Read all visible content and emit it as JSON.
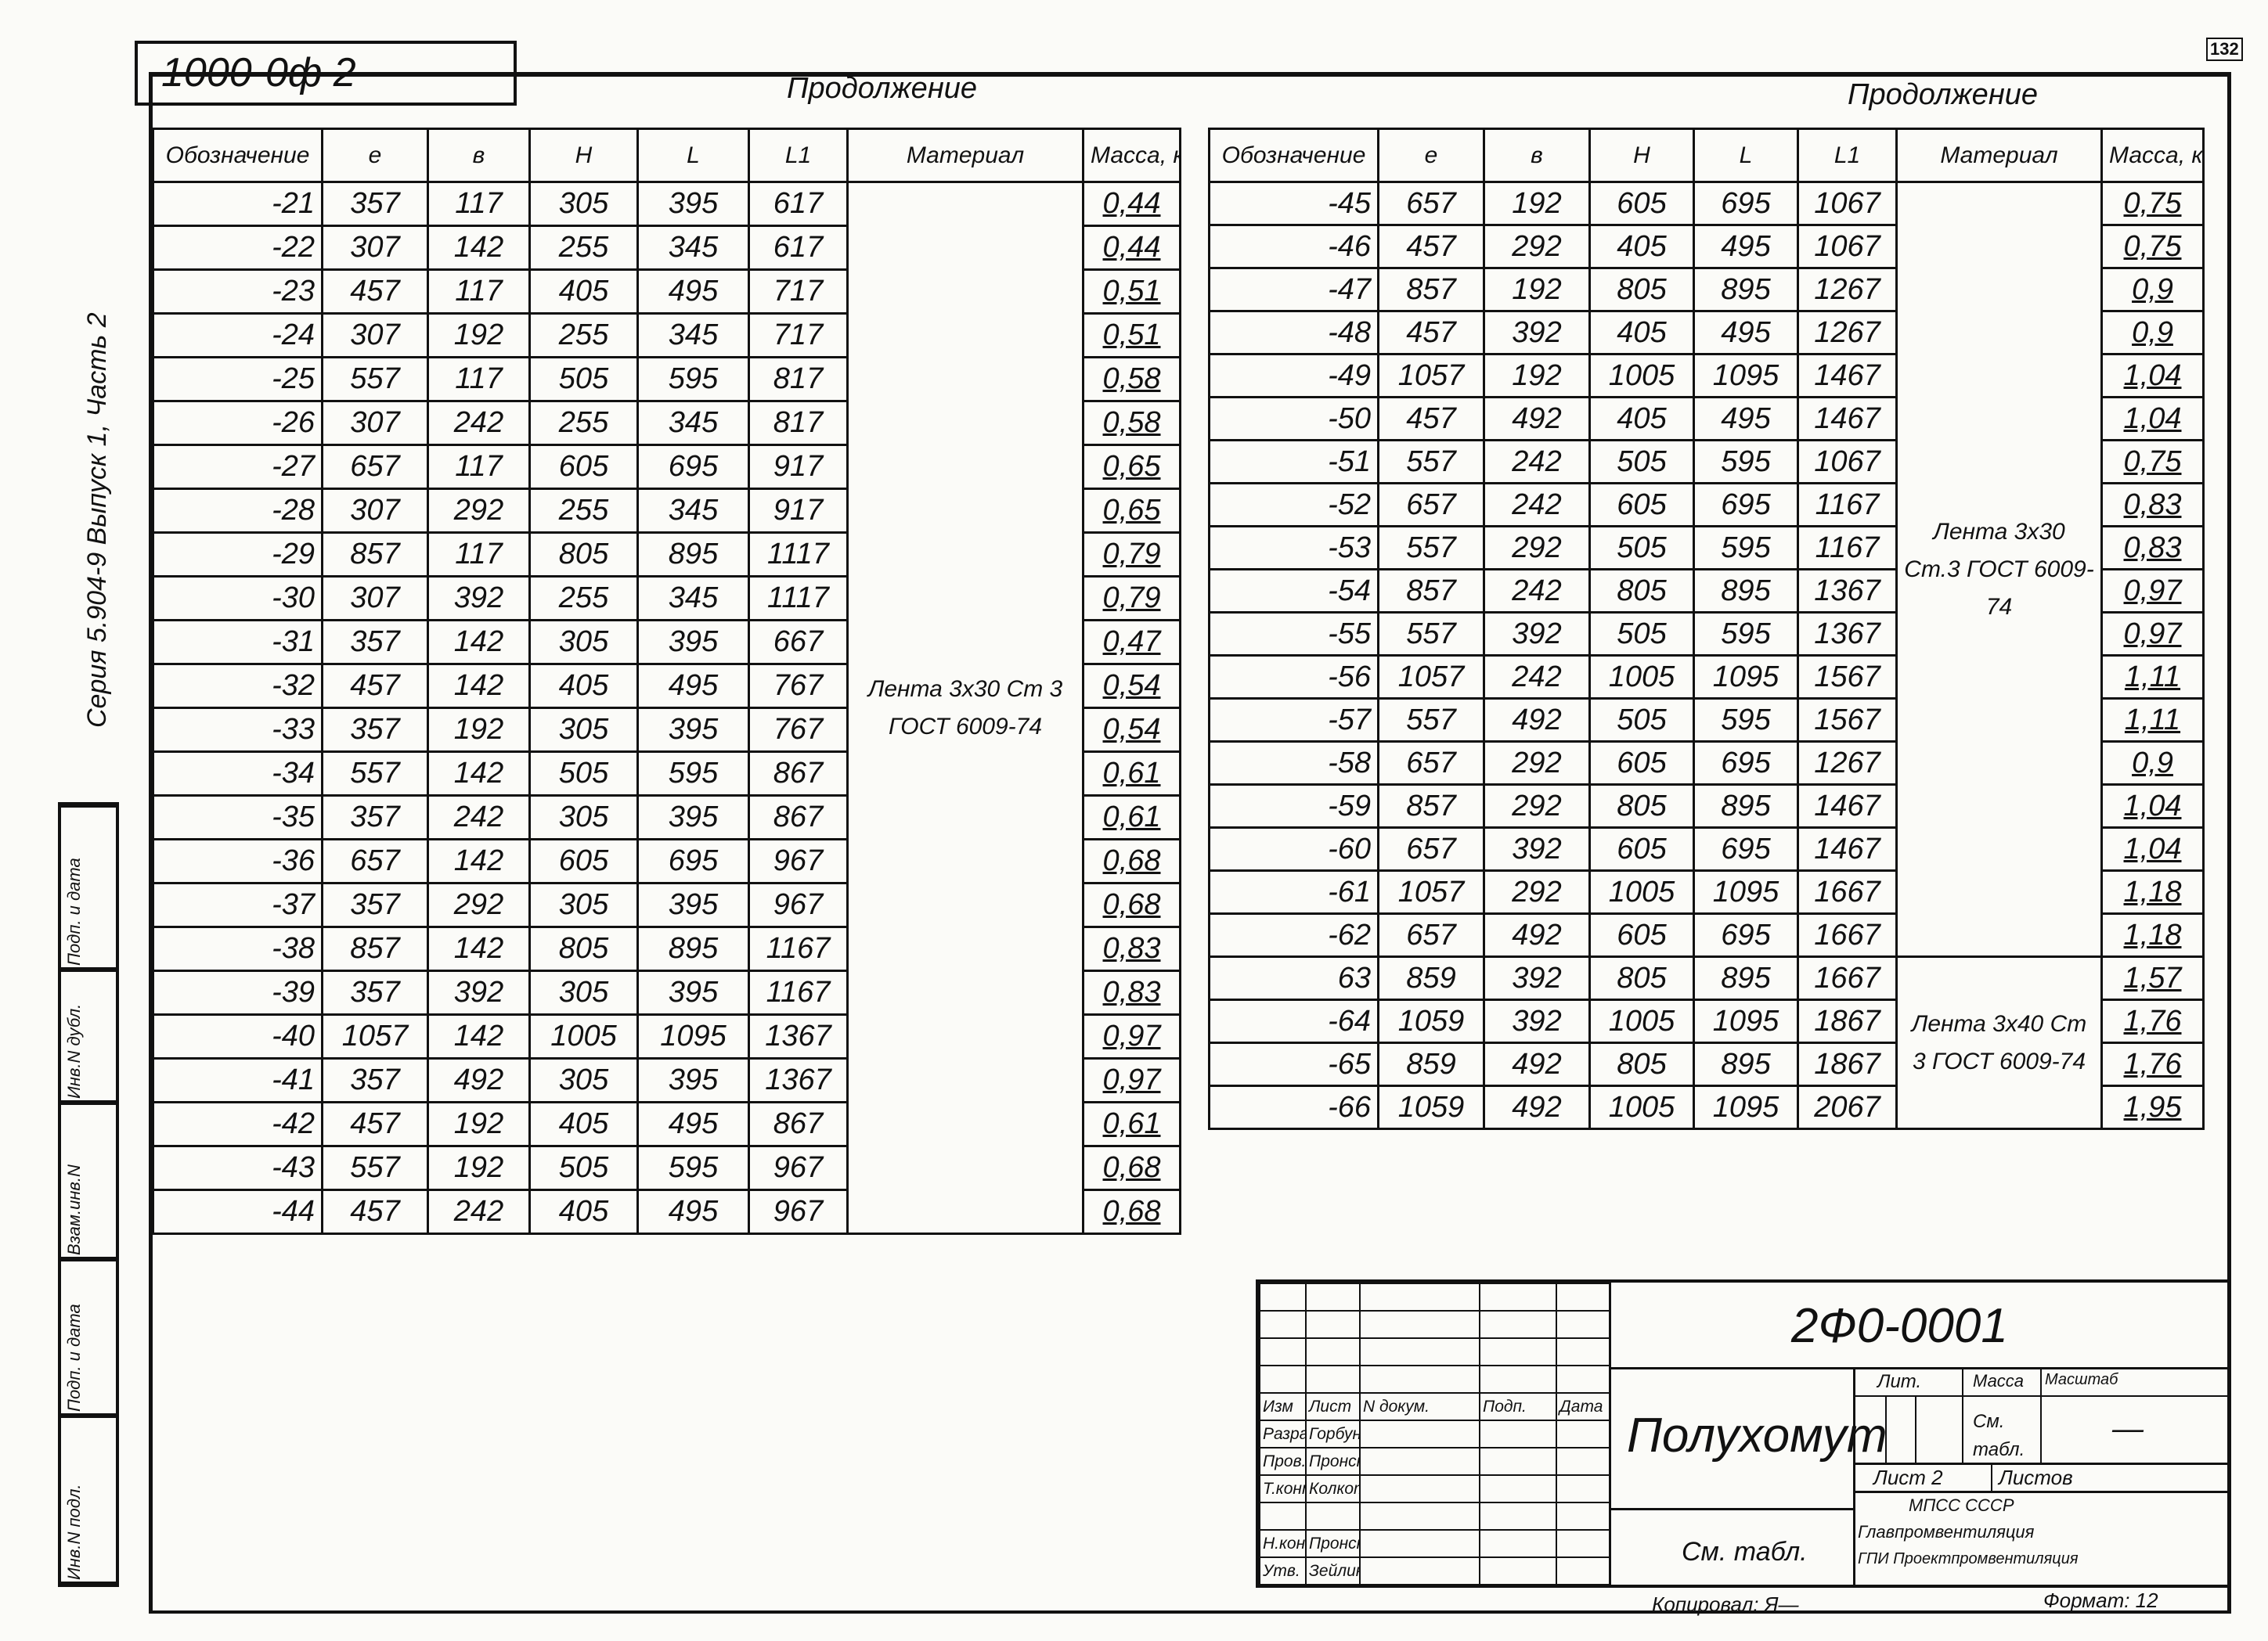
{
  "header": {
    "stamp": "1000-0ф 2",
    "page_number": "132",
    "continuation_left": "Продолжение",
    "continuation_right": "Продолжение"
  },
  "margin": {
    "series": "Серия 5.904-9  Выпуск 1, Часть 2",
    "boxes": [
      "Инв.N подл.",
      "Подп. и дата",
      "Взам.инв.N",
      "Инв.N дубл.",
      "Подп. и дата"
    ]
  },
  "columns": [
    "Обозначение",
    "e",
    "в",
    "H",
    "L",
    "L1",
    "Материал",
    "Масса, кг"
  ],
  "left_table": {
    "material": "Лента 3x30 Ст 3 ГОСТ 6009-74",
    "rows": [
      [
        "-21",
        "357",
        "117",
        "305",
        "395",
        "617",
        "0,44"
      ],
      [
        "-22",
        "307",
        "142",
        "255",
        "345",
        "617",
        "0,44"
      ],
      [
        "-23",
        "457",
        "117",
        "405",
        "495",
        "717",
        "0,51"
      ],
      [
        "-24",
        "307",
        "192",
        "255",
        "345",
        "717",
        "0,51"
      ],
      [
        "-25",
        "557",
        "117",
        "505",
        "595",
        "817",
        "0,58"
      ],
      [
        "-26",
        "307",
        "242",
        "255",
        "345",
        "817",
        "0,58"
      ],
      [
        "-27",
        "657",
        "117",
        "605",
        "695",
        "917",
        "0,65"
      ],
      [
        "-28",
        "307",
        "292",
        "255",
        "345",
        "917",
        "0,65"
      ],
      [
        "-29",
        "857",
        "117",
        "805",
        "895",
        "1117",
        "0,79"
      ],
      [
        "-30",
        "307",
        "392",
        "255",
        "345",
        "1117",
        "0,79"
      ],
      [
        "-31",
        "357",
        "142",
        "305",
        "395",
        "667",
        "0,47"
      ],
      [
        "-32",
        "457",
        "142",
        "405",
        "495",
        "767",
        "0,54"
      ],
      [
        "-33",
        "357",
        "192",
        "305",
        "395",
        "767",
        "0,54"
      ],
      [
        "-34",
        "557",
        "142",
        "505",
        "595",
        "867",
        "0,61"
      ],
      [
        "-35",
        "357",
        "242",
        "305",
        "395",
        "867",
        "0,61"
      ],
      [
        "-36",
        "657",
        "142",
        "605",
        "695",
        "967",
        "0,68"
      ],
      [
        "-37",
        "357",
        "292",
        "305",
        "395",
        "967",
        "0,68"
      ],
      [
        "-38",
        "857",
        "142",
        "805",
        "895",
        "1167",
        "0,83"
      ],
      [
        "-39",
        "357",
        "392",
        "305",
        "395",
        "1167",
        "0,83"
      ],
      [
        "-40",
        "1057",
        "142",
        "1005",
        "1095",
        "1367",
        "0,97"
      ],
      [
        "-41",
        "357",
        "492",
        "305",
        "395",
        "1367",
        "0,97"
      ],
      [
        "-42",
        "457",
        "192",
        "405",
        "495",
        "867",
        "0,61"
      ],
      [
        "-43",
        "557",
        "192",
        "505",
        "595",
        "967",
        "0,68"
      ],
      [
        "-44",
        "457",
        "242",
        "405",
        "495",
        "967",
        "0,68"
      ]
    ]
  },
  "right_table": {
    "material_1": "Лента 3x30 Ст.3 ГОСТ 6009-74",
    "material_2": "Лента 3x40 Ст 3 ГОСТ 6009-74",
    "rows": [
      [
        "-45",
        "657",
        "192",
        "605",
        "695",
        "1067",
        "0,75"
      ],
      [
        "-46",
        "457",
        "292",
        "405",
        "495",
        "1067",
        "0,75"
      ],
      [
        "-47",
        "857",
        "192",
        "805",
        "895",
        "1267",
        "0,9"
      ],
      [
        "-48",
        "457",
        "392",
        "405",
        "495",
        "1267",
        "0,9"
      ],
      [
        "-49",
        "1057",
        "192",
        "1005",
        "1095",
        "1467",
        "1,04"
      ],
      [
        "-50",
        "457",
        "492",
        "405",
        "495",
        "1467",
        "1,04"
      ],
      [
        "-51",
        "557",
        "242",
        "505",
        "595",
        "1067",
        "0,75"
      ],
      [
        "-52",
        "657",
        "242",
        "605",
        "695",
        "1167",
        "0,83"
      ],
      [
        "-53",
        "557",
        "292",
        "505",
        "595",
        "1167",
        "0,83"
      ],
      [
        "-54",
        "857",
        "242",
        "805",
        "895",
        "1367",
        "0,97"
      ],
      [
        "-55",
        "557",
        "392",
        "505",
        "595",
        "1367",
        "0,97"
      ],
      [
        "-56",
        "1057",
        "242",
        "1005",
        "1095",
        "1567",
        "1,11"
      ],
      [
        "-57",
        "557",
        "492",
        "505",
        "595",
        "1567",
        "1,11"
      ],
      [
        "-58",
        "657",
        "292",
        "605",
        "695",
        "1267",
        "0,9"
      ],
      [
        "-59",
        "857",
        "292",
        "805",
        "895",
        "1467",
        "1,04"
      ],
      [
        "-60",
        "657",
        "392",
        "605",
        "695",
        "1467",
        "1,04"
      ],
      [
        "-61",
        "1057",
        "292",
        "1005",
        "1095",
        "1667",
        "1,18"
      ],
      [
        "-62",
        "657",
        "492",
        "605",
        "695",
        "1667",
        "1,18"
      ],
      [
        "63",
        "859",
        "392",
        "805",
        "895",
        "1667",
        "1,57"
      ],
      [
        "-64",
        "1059",
        "392",
        "1005",
        "1095",
        "1867",
        "1,76"
      ],
      [
        "-65",
        "859",
        "492",
        "805",
        "895",
        "1867",
        "1,76"
      ],
      [
        "-66",
        "1059",
        "492",
        "1005",
        "1095",
        "2067",
        "1,95"
      ]
    ]
  },
  "title_block": {
    "code": "2Ф0-0001",
    "name": "Полухомут",
    "material_note": "См. табл.",
    "rev_header": [
      "Изм",
      "Лист",
      "N докум.",
      "Подп.",
      "Дата"
    ],
    "people": [
      [
        "Разраб.",
        "Горбунова"
      ],
      [
        "Пров.",
        "Пронский"
      ],
      [
        "Т.контр.",
        "Колкота"
      ],
      [
        "",
        ""
      ],
      [
        "Н.контр.",
        "Пронский"
      ],
      [
        "Утв.",
        "Зейликман"
      ]
    ],
    "lit_label": "Лит.",
    "mass_label": "Масса",
    "scale_label": "Масштаб",
    "mass_value": "См. табл.",
    "scale_value": "—",
    "sheet": "Лист 2",
    "sheets": "Листов",
    "org_1": "МПСС СССР",
    "org_2": "Главпромвентиляция",
    "org_3": "ГПИ Проектпромвентиляция",
    "copied": "Копировал: Я—",
    "format": "Формат: 12"
  }
}
